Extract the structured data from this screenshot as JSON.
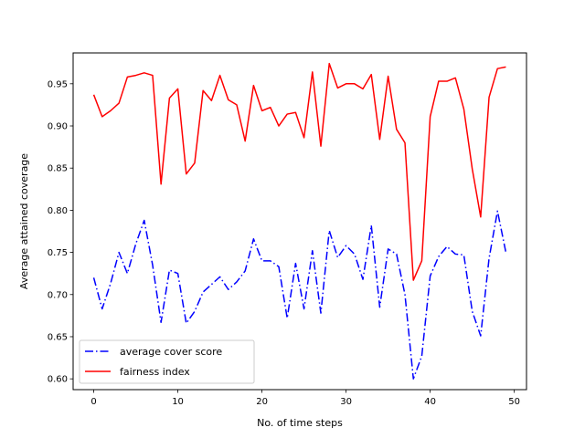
{
  "chart_data": {
    "type": "line",
    "title": "",
    "xlabel": "No. of time steps",
    "ylabel": "Average attained coverage",
    "xlim": [
      -2.45,
      51.45
    ],
    "ylim": [
      0.5872,
      0.9866
    ],
    "xticks": [
      0,
      10,
      20,
      30,
      40,
      50
    ],
    "xtick_labels": [
      "0",
      "10",
      "20",
      "30",
      "40",
      "50"
    ],
    "yticks": [
      0.6,
      0.65,
      0.7,
      0.75,
      0.8,
      0.85,
      0.9,
      0.95
    ],
    "ytick_labels": [
      "0.60",
      "0.65",
      "0.70",
      "0.75",
      "0.80",
      "0.85",
      "0.90",
      "0.95"
    ],
    "grid": false,
    "legend": {
      "position": "lower-left"
    },
    "x": [
      0,
      1,
      2,
      3,
      4,
      5,
      6,
      7,
      8,
      9,
      10,
      11,
      12,
      13,
      14,
      15,
      16,
      17,
      18,
      19,
      20,
      21,
      22,
      23,
      24,
      25,
      26,
      27,
      28,
      29,
      30,
      31,
      32,
      33,
      34,
      35,
      36,
      37,
      38,
      39,
      40,
      41,
      42,
      43,
      44,
      45,
      46,
      47,
      48,
      49
    ],
    "series": [
      {
        "name": "average cover score",
        "color": "#0000ff",
        "style": "dashdot",
        "values": [
          0.72,
          0.683,
          0.713,
          0.75,
          0.725,
          0.76,
          0.788,
          0.735,
          0.667,
          0.729,
          0.725,
          0.666,
          0.68,
          0.703,
          0.712,
          0.721,
          0.706,
          0.715,
          0.728,
          0.766,
          0.74,
          0.74,
          0.733,
          0.672,
          0.737,
          0.683,
          0.752,
          0.678,
          0.776,
          0.744,
          0.758,
          0.748,
          0.718,
          0.782,
          0.685,
          0.754,
          0.748,
          0.7,
          0.6,
          0.627,
          0.722,
          0.745,
          0.757,
          0.748,
          0.747,
          0.68,
          0.651,
          0.743,
          0.799,
          0.75
        ]
      },
      {
        "name": "fairness index",
        "color": "#ff0000",
        "style": "solid",
        "values": [
          0.937,
          0.911,
          0.918,
          0.927,
          0.958,
          0.96,
          0.963,
          0.96,
          0.831,
          0.933,
          0.944,
          0.843,
          0.856,
          0.942,
          0.93,
          0.96,
          0.931,
          0.925,
          0.882,
          0.948,
          0.918,
          0.922,
          0.9,
          0.914,
          0.916,
          0.886,
          0.964,
          0.876,
          0.974,
          0.945,
          0.95,
          0.95,
          0.944,
          0.961,
          0.884,
          0.959,
          0.896,
          0.88,
          0.717,
          0.74,
          0.911,
          0.953,
          0.953,
          0.957,
          0.92,
          0.849,
          0.792,
          0.934,
          0.968,
          0.97
        ]
      }
    ]
  }
}
